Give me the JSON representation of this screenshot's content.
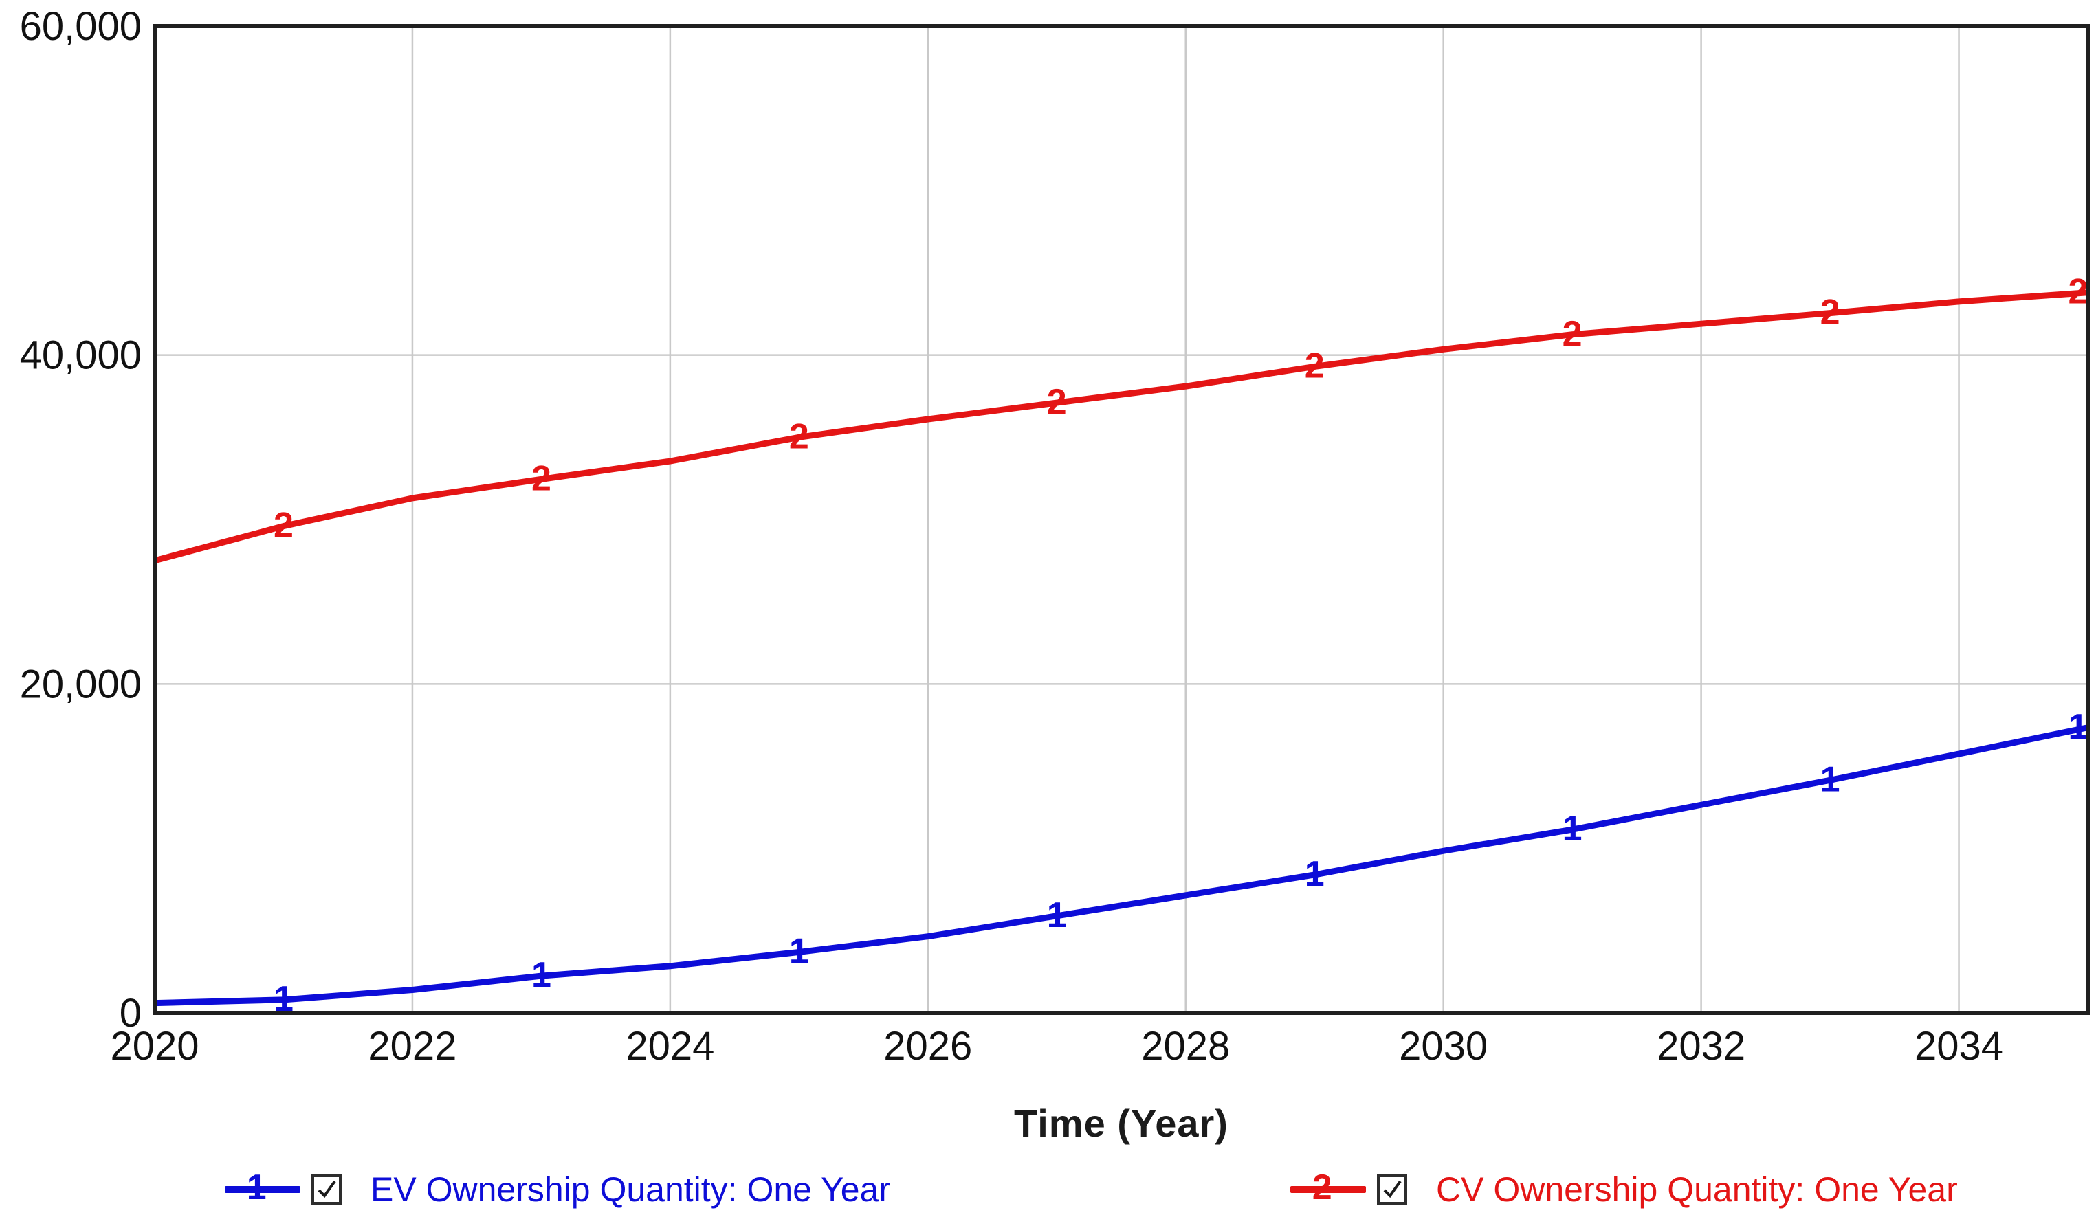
{
  "chart_data": {
    "type": "line",
    "title": "",
    "xlabel": "Time (Year)",
    "ylabel": "",
    "xlim": [
      2020,
      2035
    ],
    "ylim": [
      0,
      60000
    ],
    "grid": true,
    "legend_position": "bottom",
    "x": [
      2020,
      2021,
      2022,
      2023,
      2024,
      2025,
      2026,
      2027,
      2028,
      2029,
      2030,
      2031,
      2032,
      2033,
      2034,
      2035
    ],
    "xticks": [
      2020,
      2022,
      2024,
      2026,
      2028,
      2030,
      2032,
      2034
    ],
    "xtick_labels": [
      "2020",
      "2022",
      "2024",
      "2026",
      "2028",
      "2030",
      "2032",
      "2034"
    ],
    "yticks": [
      0,
      20000,
      40000,
      60000
    ],
    "ytick_labels": [
      "0",
      "20,000",
      "40,000",
      "60,000"
    ],
    "marker_years": [
      2021,
      2023,
      2025,
      2027,
      2029,
      2031,
      2033,
      2035
    ],
    "series": [
      {
        "name": "EV Ownership Quantity: One Year",
        "marker": "1",
        "color": "#0d0dd8",
        "checked": true,
        "values": [
          600,
          800,
          1400,
          2250,
          2850,
          3700,
          4650,
          5900,
          7150,
          8400,
          9850,
          11150,
          12650,
          14150,
          15750,
          17350
        ]
      },
      {
        "name": "CV Ownership Quantity: One Year",
        "marker": "2",
        "color": "#e41515",
        "checked": true,
        "values": [
          27500,
          29600,
          31300,
          32450,
          33550,
          35000,
          36100,
          37100,
          38100,
          39300,
          40350,
          41250,
          41900,
          42550,
          43250,
          43800
        ]
      }
    ],
    "colors": {
      "grid": "#c9c9c9",
      "border": "#1f1f1f",
      "tick_text": "#111111"
    }
  }
}
